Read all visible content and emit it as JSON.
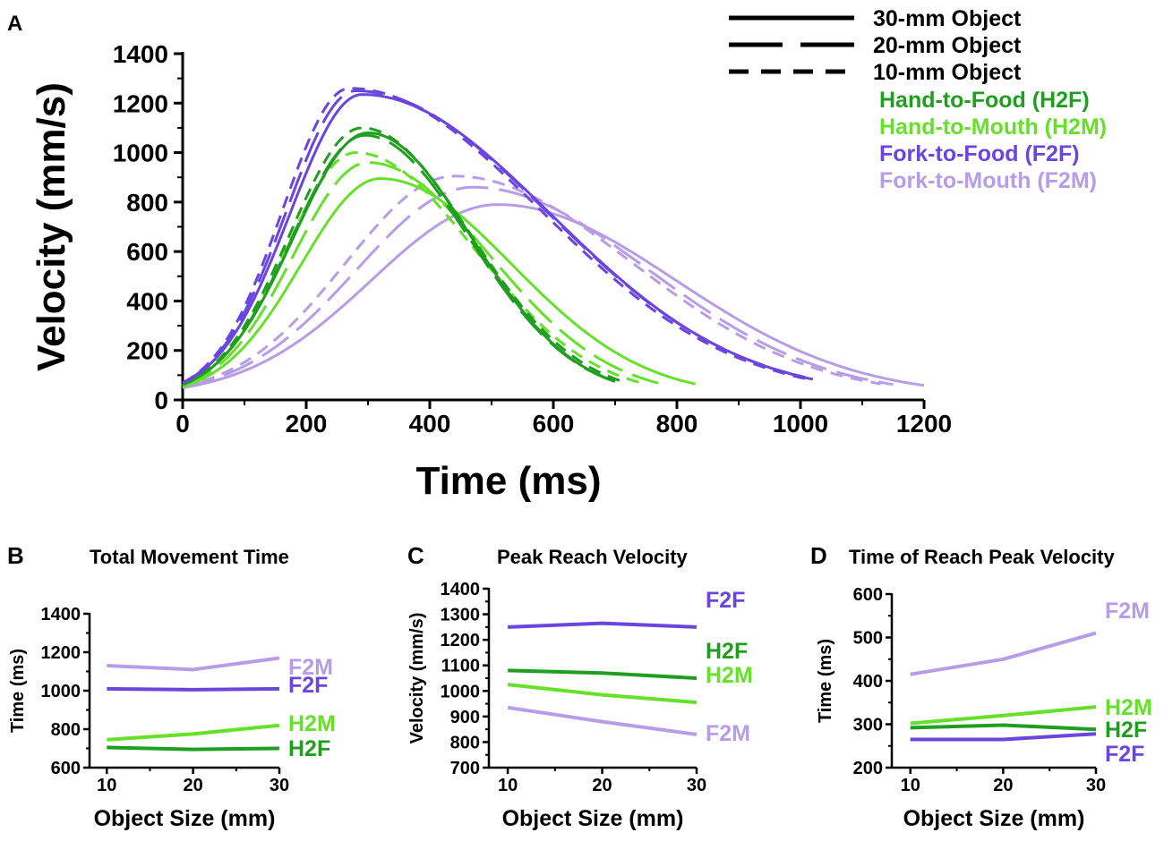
{
  "colors": {
    "H2F": "#1f9e1f",
    "H2M": "#66e02a",
    "F2F": "#6a45de",
    "F2M": "#b79de6",
    "axis": "#000000"
  },
  "chart_data": [
    {
      "panel": "A",
      "type": "line",
      "title": "",
      "xlabel": "Time (ms)",
      "ylabel": "Velocity (mm/s)",
      "xlim": [
        0,
        1200
      ],
      "ylim": [
        0,
        1400
      ],
      "xticks": [
        0,
        200,
        400,
        600,
        800,
        1000,
        1200
      ],
      "yticks": [
        0,
        200,
        400,
        600,
        800,
        1000,
        1200,
        1400
      ],
      "legend_styles": [
        {
          "label": "30-mm Object",
          "dash": "solid"
        },
        {
          "label": "20-mm Object",
          "dash": "long-dash"
        },
        {
          "label": "10-mm Object",
          "dash": "short-dash"
        }
      ],
      "legend_colors": [
        {
          "key": "H2F",
          "label": "Hand-to-Food (H2F)"
        },
        {
          "key": "H2M",
          "label": "Hand-to-Mouth (H2M)"
        },
        {
          "key": "F2F",
          "label": "Fork-to-Food (F2F)"
        },
        {
          "key": "F2M",
          "label": "Fork-to-Mouth (F2M)"
        }
      ],
      "series": [
        {
          "condition": "H2F",
          "size": "30-mm",
          "dash": "solid",
          "peak_time": 300,
          "peak": 1080,
          "duration": 700,
          "end_value": 20
        },
        {
          "condition": "H2F",
          "size": "20-mm",
          "dash": "long-dash",
          "peak_time": 295,
          "peak": 1070,
          "duration": 700,
          "end_value": 20
        },
        {
          "condition": "H2F",
          "size": "10-mm",
          "dash": "short-dash",
          "peak_time": 290,
          "peak": 1100,
          "duration": 710,
          "end_value": 20
        },
        {
          "condition": "H2M",
          "size": "30-mm",
          "dash": "solid",
          "peak_time": 320,
          "peak": 895,
          "duration": 830,
          "end_value": 25
        },
        {
          "condition": "H2M",
          "size": "20-mm",
          "dash": "long-dash",
          "peak_time": 300,
          "peak": 960,
          "duration": 770,
          "end_value": 25
        },
        {
          "condition": "H2M",
          "size": "10-mm",
          "dash": "short-dash",
          "peak_time": 280,
          "peak": 1000,
          "duration": 740,
          "end_value": 20
        },
        {
          "condition": "F2F",
          "size": "30-mm",
          "dash": "solid",
          "peak_time": 290,
          "peak": 1235,
          "duration": 1020,
          "end_value": 25
        },
        {
          "condition": "F2F",
          "size": "20-mm",
          "dash": "long-dash",
          "peak_time": 280,
          "peak": 1250,
          "duration": 1020,
          "end_value": 25
        },
        {
          "condition": "F2F",
          "size": "10-mm",
          "dash": "short-dash",
          "peak_time": 270,
          "peak": 1260,
          "duration": 1010,
          "end_value": 25
        },
        {
          "condition": "F2M",
          "size": "30-mm",
          "dash": "solid",
          "peak_time": 510,
          "peak": 790,
          "duration": 1200,
          "end_value": 30
        },
        {
          "condition": "F2M",
          "size": "20-mm",
          "dash": "long-dash",
          "peak_time": 470,
          "peak": 860,
          "duration": 1150,
          "end_value": 20
        },
        {
          "condition": "F2M",
          "size": "10-mm",
          "dash": "short-dash",
          "peak_time": 440,
          "peak": 905,
          "duration": 1130,
          "end_value": 20
        }
      ]
    },
    {
      "panel": "B",
      "type": "line",
      "title": "Total Movement Time",
      "xlabel": "Object Size (mm)",
      "ylabel": "Time (ms)",
      "x": [
        10,
        20,
        30
      ],
      "xlim": [
        8,
        30
      ],
      "ylim": [
        600,
        1400
      ],
      "yticks": [
        600,
        800,
        1000,
        1200,
        1400
      ],
      "series": [
        {
          "name": "F2M",
          "values": [
            1130,
            1110,
            1170
          ]
        },
        {
          "name": "F2F",
          "values": [
            1010,
            1005,
            1010
          ]
        },
        {
          "name": "H2M",
          "values": [
            745,
            775,
            820
          ]
        },
        {
          "name": "H2F",
          "values": [
            705,
            695,
            700
          ]
        }
      ]
    },
    {
      "panel": "C",
      "type": "line",
      "title": "Peak Reach Velocity",
      "xlabel": "Object Size (mm)",
      "ylabel": "Velocity (mm/s)",
      "x": [
        10,
        20,
        30
      ],
      "xlim": [
        8,
        30
      ],
      "ylim": [
        700,
        1400
      ],
      "yticks": [
        700,
        800,
        900,
        1000,
        1100,
        1200,
        1300,
        1400
      ],
      "series": [
        {
          "name": "F2F",
          "values": [
            1250,
            1265,
            1250
          ]
        },
        {
          "name": "H2F",
          "values": [
            1080,
            1070,
            1050
          ]
        },
        {
          "name": "H2M",
          "values": [
            1025,
            985,
            955
          ]
        },
        {
          "name": "F2M",
          "values": [
            935,
            880,
            830
          ]
        }
      ]
    },
    {
      "panel": "D",
      "type": "line",
      "title": "Time of Reach Peak Velocity",
      "xlabel": "Object Size (mm)",
      "ylabel": "Time (ms)",
      "x": [
        10,
        20,
        30
      ],
      "xlim": [
        8,
        30
      ],
      "ylim": [
        200,
        600
      ],
      "yticks": [
        200,
        300,
        400,
        500,
        600
      ],
      "series": [
        {
          "name": "F2M",
          "values": [
            415,
            450,
            510
          ]
        },
        {
          "name": "H2M",
          "values": [
            302,
            320,
            340
          ]
        },
        {
          "name": "H2F",
          "values": [
            292,
            298,
            288
          ]
        },
        {
          "name": "F2F",
          "values": [
            265,
            265,
            278
          ]
        }
      ]
    }
  ]
}
